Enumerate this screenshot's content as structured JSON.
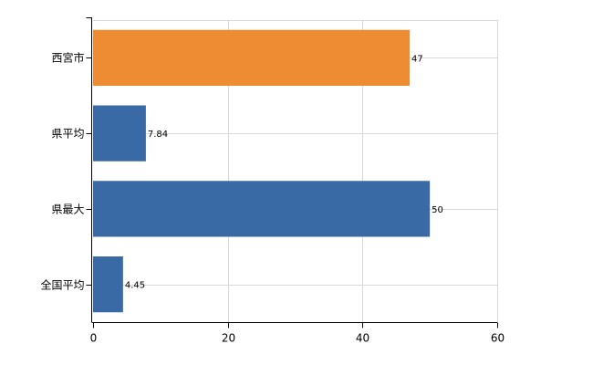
{
  "chart_data": {
    "type": "bar",
    "orientation": "horizontal",
    "categories": [
      "西宮市",
      "県平均",
      "県最大",
      "全国平均"
    ],
    "values": [
      47,
      7.84,
      50,
      4.45
    ],
    "value_labels": [
      "47",
      "7.84",
      "50",
      "4.45"
    ],
    "colors": [
      "#ee8c33",
      "#3a6aa6",
      "#3a6aa6",
      "#3a6aa6"
    ],
    "title": "",
    "xlabel": "",
    "ylabel": "",
    "xlim": [
      0,
      60
    ],
    "x_ticks": [
      0,
      20,
      40,
      60
    ],
    "grid": true,
    "legend": "none"
  }
}
